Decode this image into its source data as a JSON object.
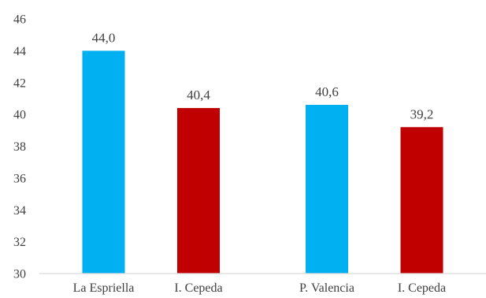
{
  "chart_data": {
    "type": "bar",
    "title": "",
    "xlabel": "",
    "ylabel": "",
    "ylim": [
      30,
      46
    ],
    "yticks": [
      30,
      32,
      34,
      36,
      38,
      40,
      42,
      44,
      46
    ],
    "grid": false,
    "legend": "none",
    "categories": [
      "La Espriella",
      "I. Cepeda",
      "P. Valencia",
      "I. Cepeda"
    ],
    "groups": [
      [
        0,
        1
      ],
      [
        2,
        3
      ]
    ],
    "values": [
      44.0,
      40.4,
      40.6,
      39.2
    ],
    "value_labels": [
      "44,0",
      "40,4",
      "40,6",
      "39,2"
    ],
    "colors": [
      "#00b0f0",
      "#c00000",
      "#00b0f0",
      "#c00000"
    ],
    "axis_color": "#d9d9d9"
  }
}
